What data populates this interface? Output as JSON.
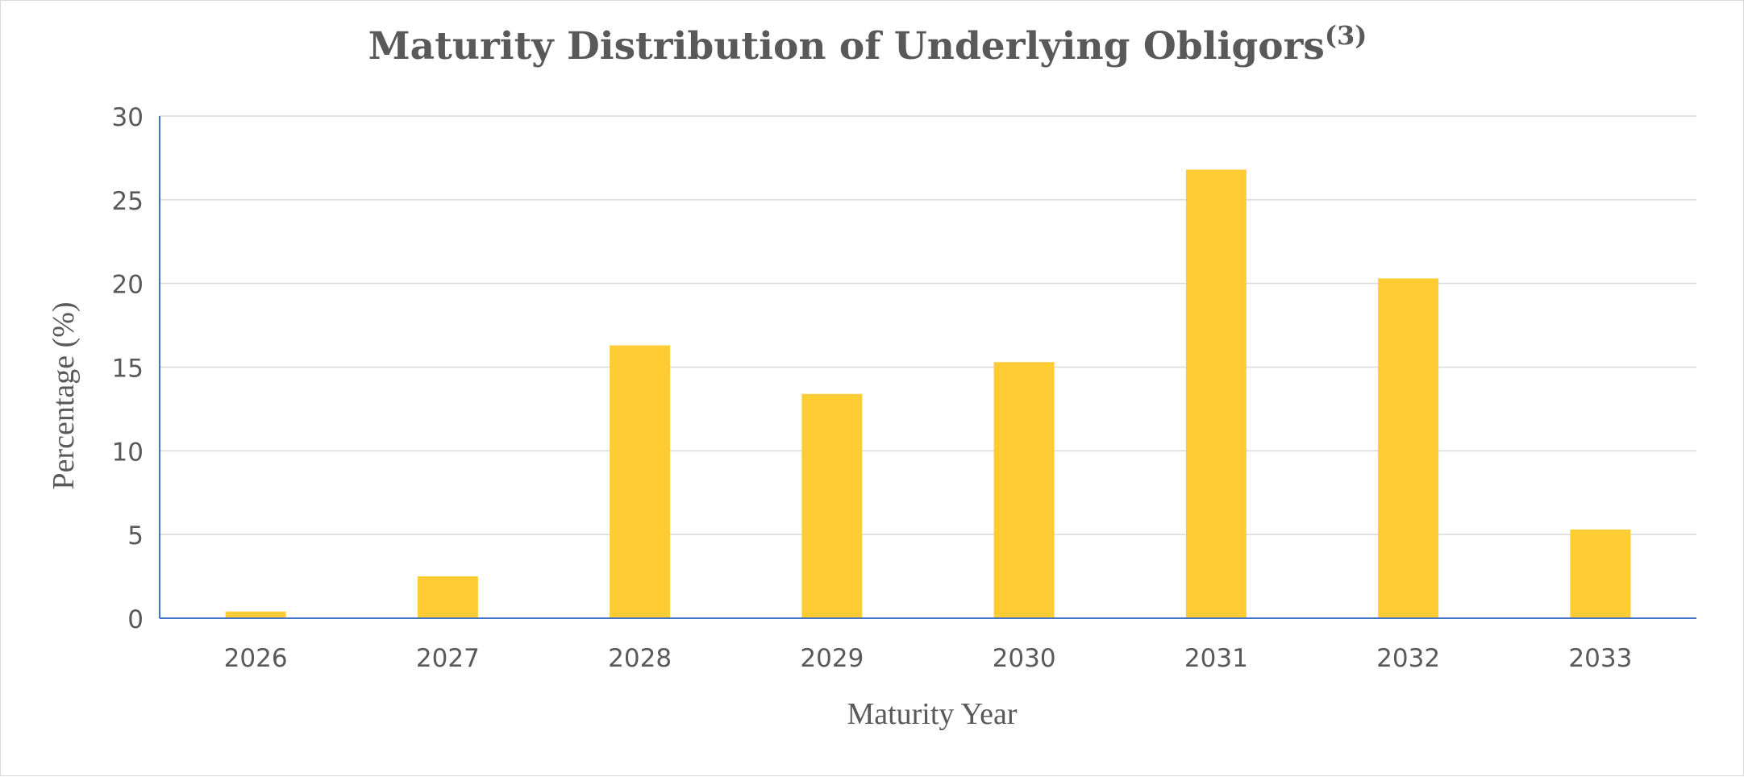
{
  "chart_data": {
    "type": "bar",
    "title": "Maturity Distribution of Underlying Obligors",
    "title_superscript": "(3)",
    "xlabel": "Maturity Year",
    "ylabel": "Percentage (%)",
    "categories": [
      "2026",
      "2027",
      "2028",
      "2029",
      "2030",
      "2031",
      "2032",
      "2033"
    ],
    "values": [
      0.4,
      2.5,
      16.3,
      13.4,
      15.3,
      26.8,
      20.3,
      5.3
    ],
    "ylim": [
      0,
      30
    ],
    "yticks": [
      "0",
      "5",
      "10",
      "15",
      "20",
      "25",
      "30"
    ],
    "grid": true,
    "legend": "none",
    "colors": {
      "bar": "#ffcc33",
      "grid": "#d9d9d9",
      "axis": "#4472c4",
      "text": "#595959"
    }
  }
}
